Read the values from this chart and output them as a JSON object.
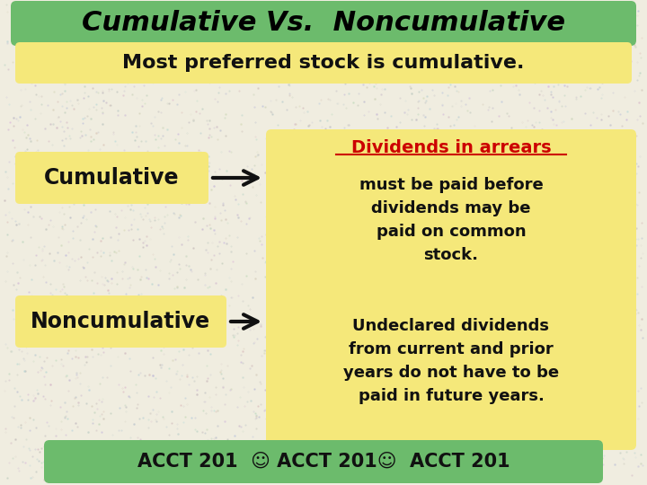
{
  "title": "Cumulative Vs.  Noncumulative",
  "title_bg": "#6cbb6c",
  "title_color": "#000000",
  "bg_color": "#f0ede0",
  "yellow_box": "#f5e87a",
  "green_box": "#6cbb6c",
  "cumulative_label": "Cumulative",
  "noncumulative_label": "Noncumulative",
  "cumulative_text_header": "Dividends in arrears",
  "cumulative_text_body": "must be paid before\ndividends may be\npaid on common\nstock.",
  "noncumulative_text": "Undeclared dividends\nfrom current and prior\nyears do not have to be\npaid in future years.",
  "bottom_text": "Most preferred stock is cumulative.",
  "footer_text": "ACCT 201  ☺ ACCT 201☺  ACCT 201",
  "arrow_color": "#111111",
  "red_color": "#cc0000",
  "black_color": "#111111"
}
